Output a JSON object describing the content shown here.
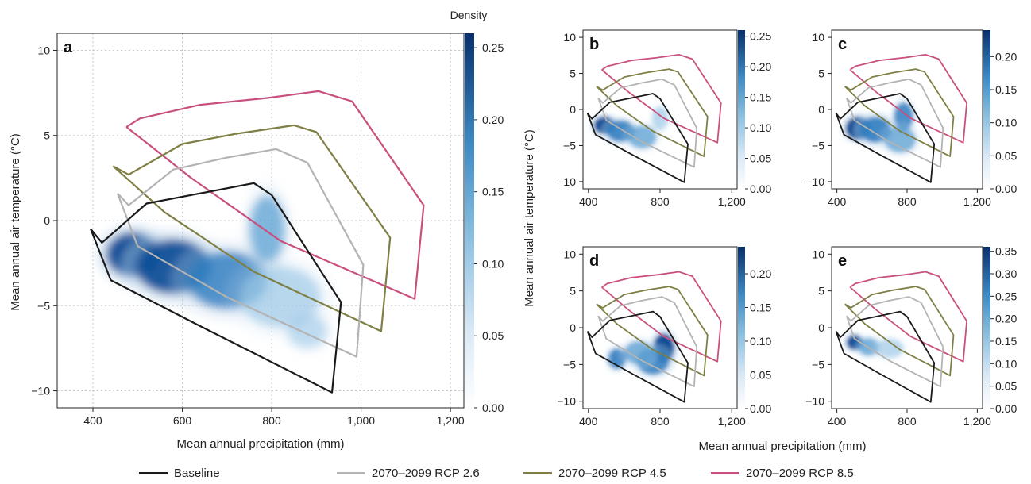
{
  "figure": {
    "colorbar_title": "Density",
    "x_axis_label": "Mean annual precipitation (mm)",
    "y_axis_label": "Mean annual air temperature (°C)"
  },
  "legend": [
    {
      "label": "Baseline",
      "color": "#1a1a1a"
    },
    {
      "label": "2070–2099 RCP 2.6",
      "color": "#b3b3b3"
    },
    {
      "label": "2070–2099 RCP 4.5",
      "color": "#7f7f45"
    },
    {
      "label": "2070–2099 RCP 8.5",
      "color": "#c9507e"
    }
  ],
  "chart_data": [
    {
      "panel": "a",
      "type": "heatmap",
      "xlim": [
        320,
        1230
      ],
      "ylim": [
        -11,
        11
      ],
      "x_ticks": [
        400,
        600,
        800,
        1000,
        1200
      ],
      "x_tick_labels": [
        "400",
        "600",
        "800",
        "1,000",
        "1,200"
      ],
      "y_ticks": [
        -10,
        -5,
        0,
        5,
        10
      ],
      "y_tick_labels": [
        "−10",
        "−5",
        "0",
        "5",
        "10"
      ],
      "grid": true,
      "colorbar": {
        "range": [
          0,
          0.26
        ],
        "ticks": [
          0,
          0.05,
          0.1,
          0.15,
          0.2,
          0.25
        ],
        "tick_labels": [
          "0.00",
          "0.05",
          "0.10",
          "0.15",
          "0.20",
          "0.25"
        ]
      }
    },
    {
      "panel": "b",
      "type": "heatmap",
      "xlim": [
        370,
        1230
      ],
      "ylim": [
        -11,
        11
      ],
      "x_ticks": [
        400,
        800,
        1200
      ],
      "x_tick_labels": [
        "400",
        "800",
        "1,200"
      ],
      "y_ticks": [
        -10,
        -5,
        0,
        5,
        10
      ],
      "y_tick_labels": [
        "−10",
        "−5",
        "0",
        "5",
        "10"
      ],
      "grid": false,
      "colorbar": {
        "range": [
          0,
          0.26
        ],
        "ticks": [
          0,
          0.05,
          0.1,
          0.15,
          0.2,
          0.25
        ],
        "tick_labels": [
          "0.00",
          "0.05",
          "0.10",
          "0.15",
          "0.20",
          "0.25"
        ]
      }
    },
    {
      "panel": "c",
      "type": "heatmap",
      "xlim": [
        370,
        1230
      ],
      "ylim": [
        -11,
        11
      ],
      "x_ticks": [
        400,
        800,
        1200
      ],
      "x_tick_labels": [
        "400",
        "800",
        "1,200"
      ],
      "y_ticks": [
        -10,
        -5,
        0,
        5,
        10
      ],
      "y_tick_labels": [
        "−10",
        "−5",
        "0",
        "5",
        "10"
      ],
      "grid": false,
      "colorbar": {
        "range": [
          0,
          0.24
        ],
        "ticks": [
          0,
          0.05,
          0.1,
          0.15,
          0.2
        ],
        "tick_labels": [
          "0.00",
          "0.05",
          "0.10",
          "0.15",
          "0.20"
        ]
      }
    },
    {
      "panel": "d",
      "type": "heatmap",
      "xlim": [
        370,
        1230
      ],
      "ylim": [
        -11,
        11
      ],
      "x_ticks": [
        400,
        800,
        1200
      ],
      "x_tick_labels": [
        "400",
        "800",
        "1,200"
      ],
      "y_ticks": [
        -10,
        -5,
        0,
        5,
        10
      ],
      "y_tick_labels": [
        "−10",
        "−5",
        "0",
        "5",
        "10"
      ],
      "grid": false,
      "colorbar": {
        "range": [
          0,
          0.24
        ],
        "ticks": [
          0,
          0.05,
          0.1,
          0.15,
          0.2
        ],
        "tick_labels": [
          "0.00",
          "0.05",
          "0.10",
          "0.15",
          "0.20"
        ]
      }
    },
    {
      "panel": "e",
      "type": "heatmap",
      "xlim": [
        370,
        1230
      ],
      "ylim": [
        -11,
        11
      ],
      "x_ticks": [
        400,
        800,
        1200
      ],
      "x_tick_labels": [
        "400",
        "800",
        "1,200"
      ],
      "y_ticks": [
        -10,
        -5,
        0,
        5,
        10
      ],
      "y_tick_labels": [
        "−10",
        "−5",
        "0",
        "5",
        "10"
      ],
      "grid": false,
      "colorbar": {
        "range": [
          0,
          0.36
        ],
        "ticks": [
          0,
          0.05,
          0.1,
          0.15,
          0.2,
          0.25,
          0.3,
          0.35
        ],
        "tick_labels": [
          "0.00",
          "0.05",
          "0.10",
          "0.15",
          "0.20",
          "0.25",
          "0.30",
          "0.35"
        ]
      }
    }
  ],
  "envelopes": {
    "baseline": [
      [
        395,
        -0.5
      ],
      [
        420,
        -1.3
      ],
      [
        520,
        1.0
      ],
      [
        640,
        1.6
      ],
      [
        760,
        2.2
      ],
      [
        800,
        1.5
      ],
      [
        955,
        -4.8
      ],
      [
        935,
        -10.1
      ],
      [
        640,
        -6.2
      ],
      [
        440,
        -3.5
      ],
      [
        395,
        -0.5
      ]
    ],
    "rcp26": [
      [
        455,
        1.6
      ],
      [
        480,
        0.9
      ],
      [
        580,
        3.0
      ],
      [
        700,
        3.7
      ],
      [
        810,
        4.2
      ],
      [
        880,
        3.4
      ],
      [
        1005,
        -2.6
      ],
      [
        990,
        -8.0
      ],
      [
        700,
        -4.5
      ],
      [
        500,
        -1.5
      ],
      [
        455,
        1.6
      ]
    ],
    "rcp45": [
      [
        445,
        3.2
      ],
      [
        480,
        2.7
      ],
      [
        600,
        4.5
      ],
      [
        720,
        5.1
      ],
      [
        850,
        5.6
      ],
      [
        900,
        5.2
      ],
      [
        1065,
        -1.0
      ],
      [
        1045,
        -6.5
      ],
      [
        760,
        -3.0
      ],
      [
        560,
        0.5
      ],
      [
        445,
        3.2
      ]
    ],
    "rcp85": [
      [
        475,
        5.5
      ],
      [
        505,
        6.0
      ],
      [
        640,
        6.8
      ],
      [
        790,
        7.2
      ],
      [
        905,
        7.6
      ],
      [
        980,
        7.0
      ],
      [
        1140,
        0.9
      ],
      [
        1120,
        -4.6
      ],
      [
        820,
        -1.2
      ],
      [
        620,
        2.5
      ],
      [
        475,
        5.5
      ]
    ]
  },
  "density_blobs": {
    "a": [
      [
        490,
        -2.0,
        60,
        1.3,
        1.0
      ],
      [
        580,
        -2.7,
        85,
        1.6,
        0.85
      ],
      [
        700,
        -3.5,
        90,
        1.7,
        0.6
      ],
      [
        790,
        -0.5,
        40,
        2.0,
        0.45
      ],
      [
        820,
        -4.5,
        90,
        1.8,
        0.3
      ],
      [
        880,
        -6.5,
        45,
        1.0,
        0.15
      ]
    ],
    "b": [
      [
        490,
        -2.2,
        60,
        1.2,
        1.0
      ],
      [
        580,
        -3.0,
        80,
        1.5,
        0.75
      ],
      [
        700,
        -3.8,
        80,
        1.6,
        0.45
      ],
      [
        800,
        -1.2,
        45,
        1.6,
        0.25
      ]
    ],
    "c": [
      [
        520,
        -2.6,
        70,
        1.6,
        1.0
      ],
      [
        620,
        -2.8,
        90,
        1.8,
        0.8
      ],
      [
        780,
        -1.0,
        55,
        2.0,
        0.65
      ],
      [
        760,
        -4.2,
        90,
        1.8,
        0.45
      ]
    ],
    "d": [
      [
        560,
        -4.2,
        50,
        1.4,
        0.75
      ],
      [
        820,
        -2.8,
        60,
        2.0,
        1.0
      ],
      [
        760,
        -4.6,
        90,
        1.8,
        0.65
      ],
      [
        680,
        -3.4,
        80,
        1.6,
        0.5
      ]
    ],
    "e": [
      [
        500,
        -2.0,
        45,
        1.0,
        1.0
      ],
      [
        580,
        -2.6,
        60,
        1.2,
        0.55
      ],
      [
        700,
        -2.8,
        80,
        1.3,
        0.25
      ]
    ]
  }
}
